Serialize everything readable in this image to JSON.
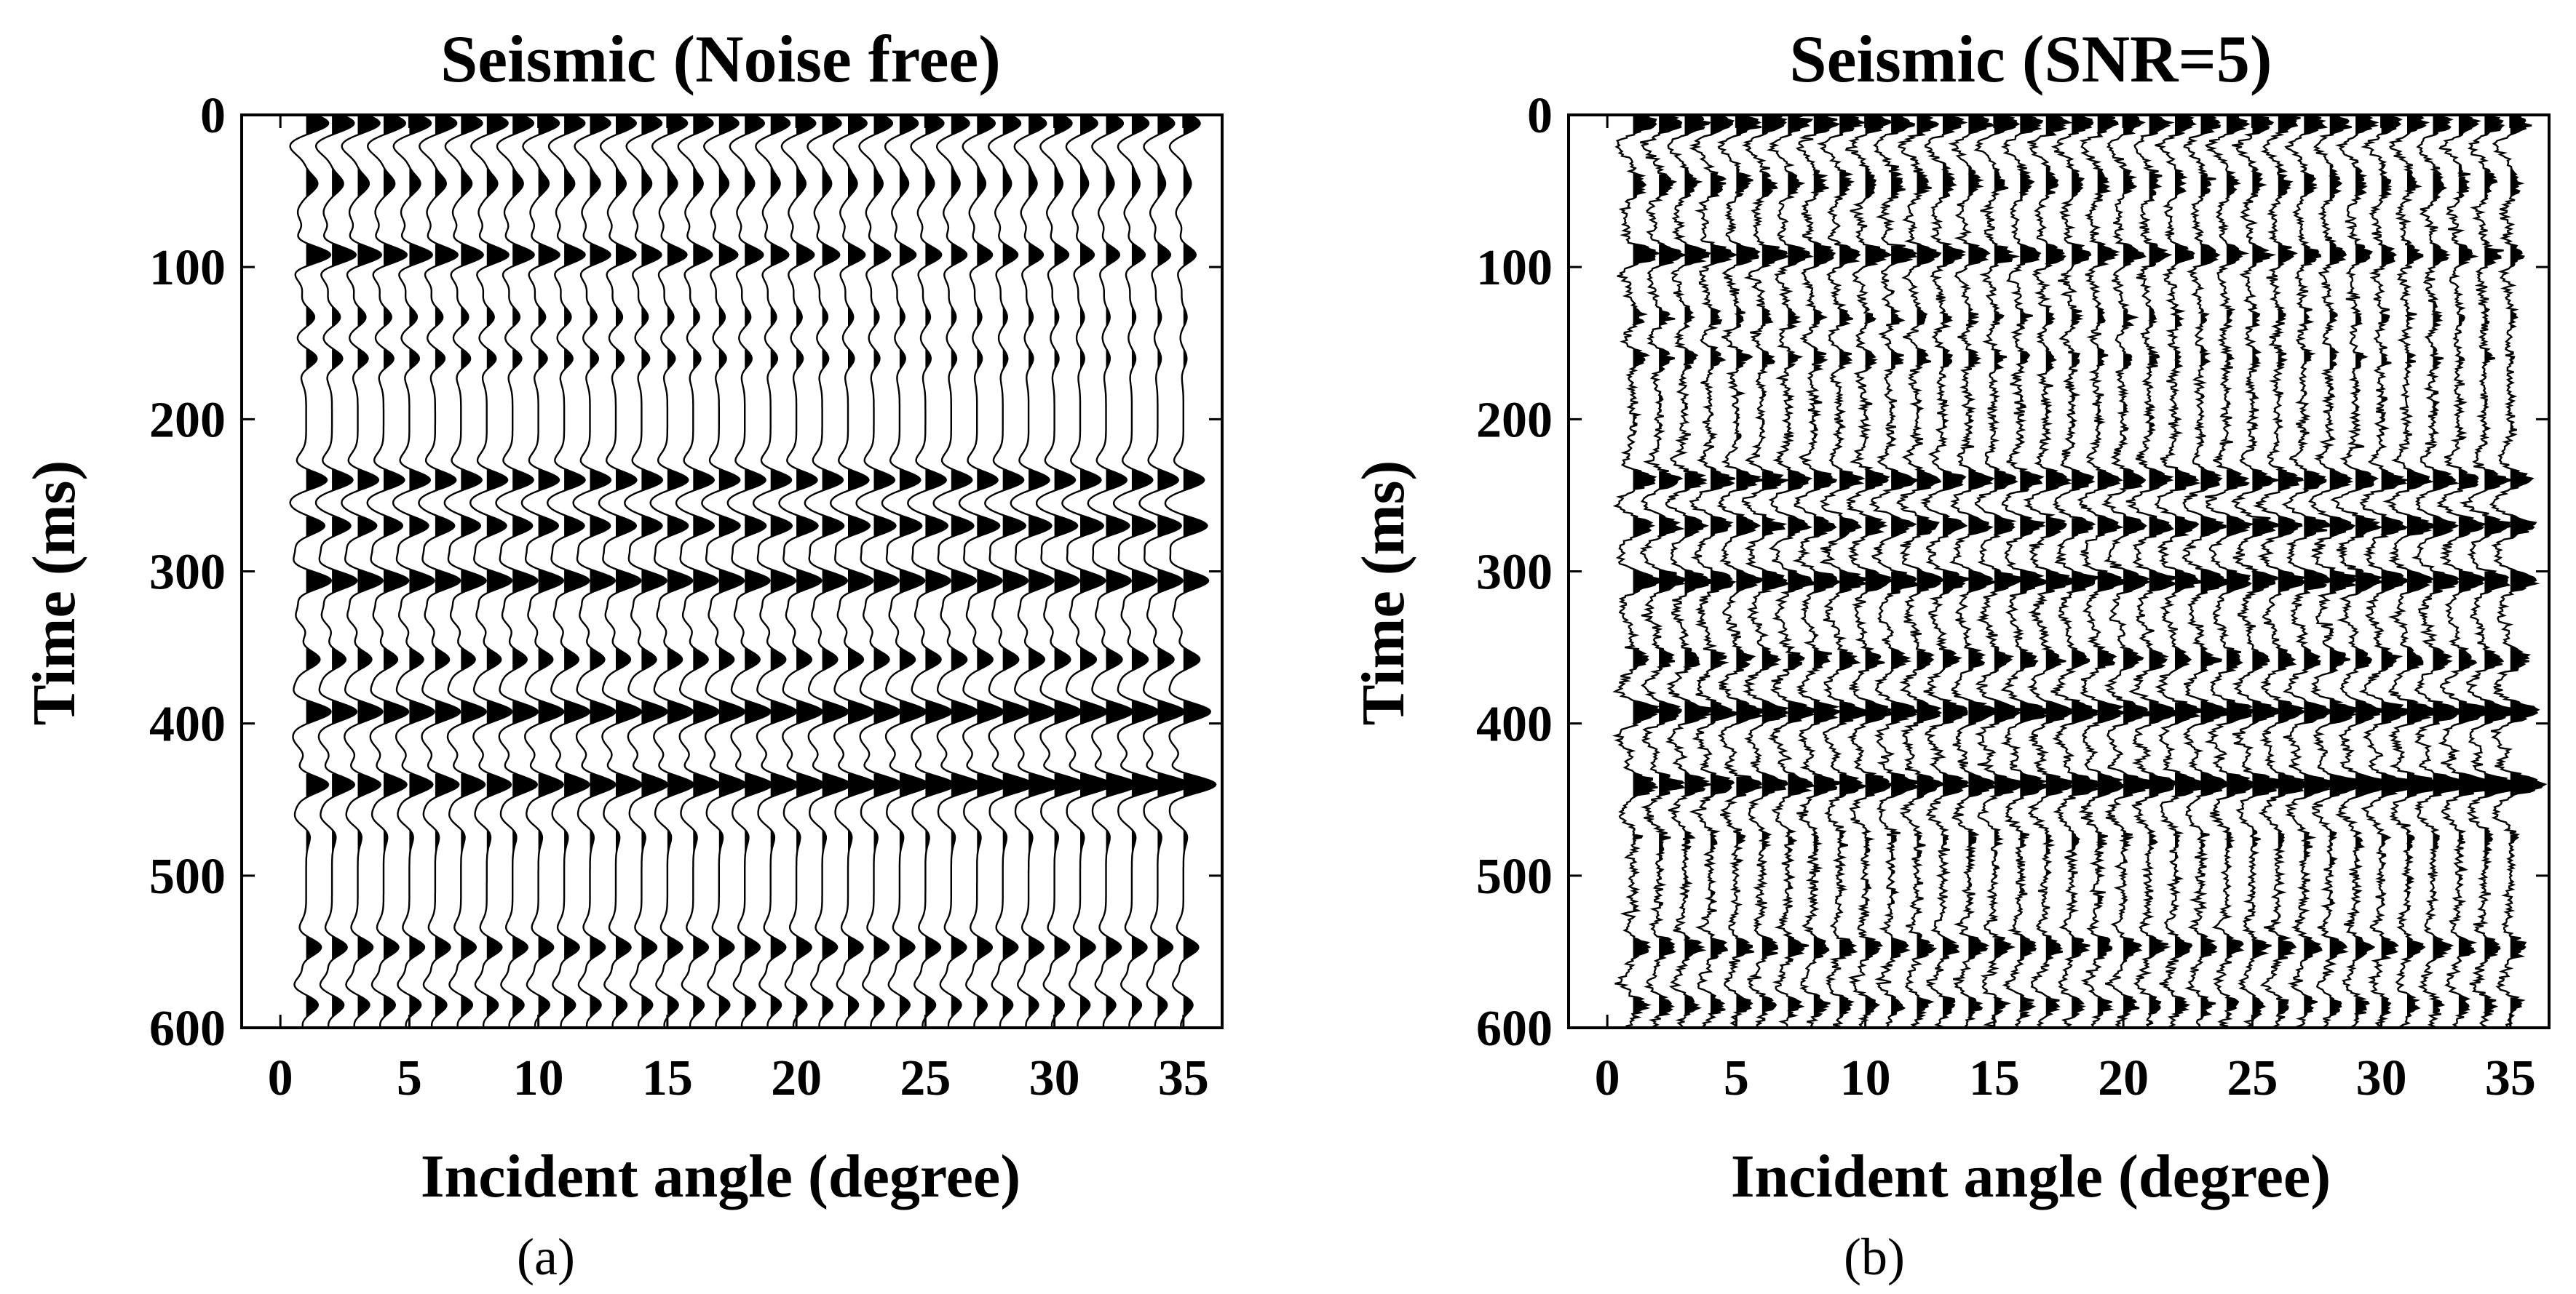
{
  "chart_data": [
    {
      "type": "seismic-wiggle",
      "panel_label": "(a)",
      "title": "Seismic (Noise free)",
      "xlabel": "Incident angle (degree)",
      "ylabel": "Time (ms)",
      "x_ticks": [
        "0",
        "5",
        "10",
        "15",
        "20",
        "25",
        "30",
        "35"
      ],
      "y_ticks": [
        "0",
        "100",
        "200",
        "300",
        "400",
        "500",
        "600"
      ],
      "xlim": [
        -1.5,
        36.5
      ],
      "ylim": [
        0,
        600
      ],
      "y_reversed": true,
      "traces": {
        "first_angle": 1,
        "last_angle": 35,
        "step": 1
      },
      "noise": "none",
      "reflections_ms": [
        {
          "time": 5,
          "amp": 0.8,
          "polarity": 1,
          "avo": -0.3
        },
        {
          "time": 22,
          "amp": 0.35,
          "polarity": -1,
          "avo": 0.0
        },
        {
          "time": 45,
          "amp": 0.4,
          "polarity": 1,
          "avo": -0.4
        },
        {
          "time": 65,
          "amp": 0.25,
          "polarity": -1,
          "avo": 0.0
        },
        {
          "time": 92,
          "amp": 1.0,
          "polarity": 1,
          "avo": -0.5
        },
        {
          "time": 133,
          "amp": 0.35,
          "polarity": 1,
          "avo": -0.6
        },
        {
          "time": 160,
          "amp": 0.45,
          "polarity": 1,
          "avo": -0.7
        },
        {
          "time": 240,
          "amp": 0.85,
          "polarity": 1,
          "avo": 0.0
        },
        {
          "time": 270,
          "amp": 0.75,
          "polarity": 1,
          "avo": 0.3
        },
        {
          "time": 306,
          "amp": 1.0,
          "polarity": 1,
          "avo": 0.0
        },
        {
          "time": 330,
          "amp": 0.35,
          "polarity": -1,
          "avo": 0.0
        },
        {
          "time": 358,
          "amp": 0.55,
          "polarity": 1,
          "avo": 0.2
        },
        {
          "time": 392,
          "amp": 0.95,
          "polarity": 1,
          "avo": 0.1
        },
        {
          "time": 412,
          "amp": 0.3,
          "polarity": -1,
          "avo": 0.0
        },
        {
          "time": 440,
          "amp": 0.85,
          "polarity": 1,
          "avo": 0.5
        },
        {
          "time": 462,
          "amp": 0.35,
          "polarity": -1,
          "avo": 0.0
        },
        {
          "time": 547,
          "amp": 0.6,
          "polarity": 1,
          "avo": 0.0
        },
        {
          "time": 572,
          "amp": 0.3,
          "polarity": -1,
          "avo": 0.0
        },
        {
          "time": 585,
          "amp": 0.35,
          "polarity": 1,
          "avo": -0.3
        }
      ]
    },
    {
      "type": "seismic-wiggle",
      "panel_label": "(b)",
      "title": "Seismic (SNR=5)",
      "xlabel": "Incident angle (degree)",
      "ylabel": "Time (ms)",
      "x_ticks": [
        "0",
        "5",
        "10",
        "15",
        "20",
        "25",
        "30",
        "35"
      ],
      "y_ticks": [
        "0",
        "100",
        "200",
        "300",
        "400",
        "500",
        "600"
      ],
      "xlim": [
        -1.5,
        36.5
      ],
      "ylim": [
        0,
        600
      ],
      "y_reversed": true,
      "traces": {
        "first_angle": 1,
        "last_angle": 35,
        "step": 1
      },
      "noise": "SNR=5",
      "snr": 5,
      "reflections_ms": "same as (a)"
    }
  ]
}
